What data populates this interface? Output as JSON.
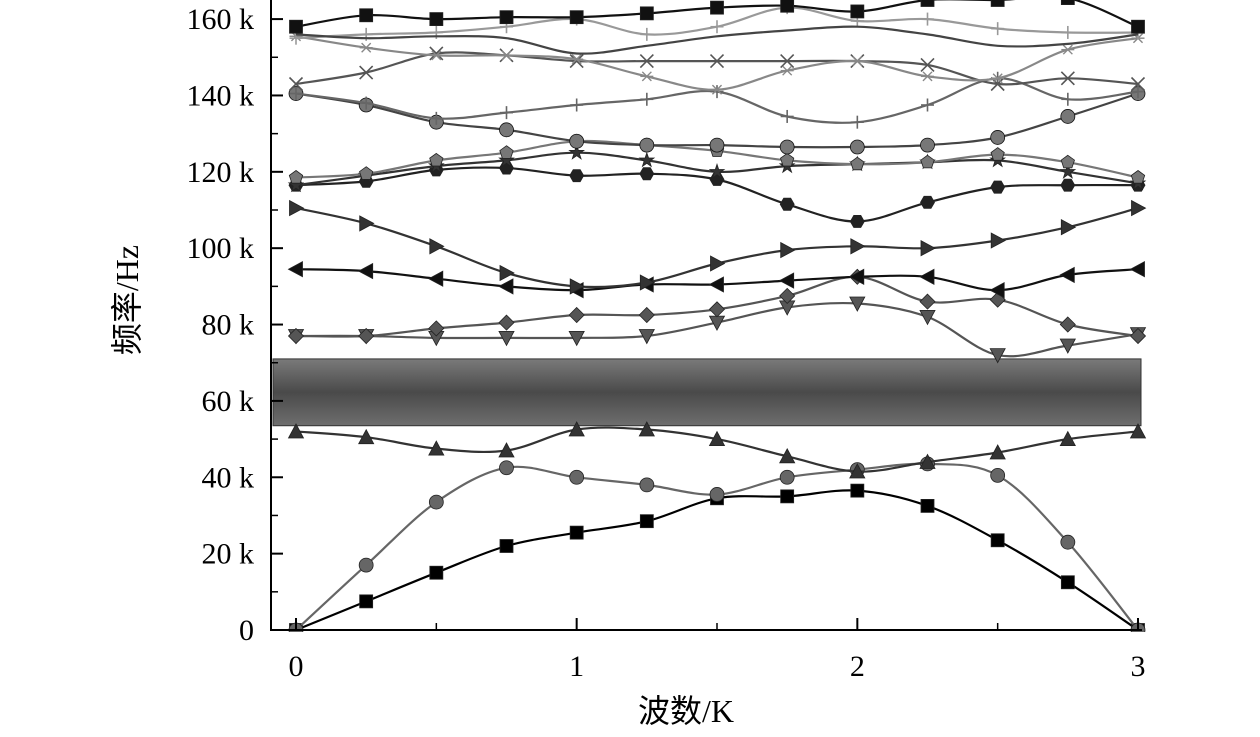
{
  "chart_data": {
    "type": "line",
    "title": "",
    "xlabel": "波数/K",
    "ylabel": "频率/Hz",
    "xlim": [
      0,
      3
    ],
    "ylim": [
      0,
      165000
    ],
    "x_ticks": [
      0,
      1,
      2,
      3
    ],
    "x_tick_labels": [
      "0",
      "1",
      "2",
      "3"
    ],
    "y_ticks": [
      0,
      20000,
      40000,
      60000,
      80000,
      100000,
      120000,
      140000,
      160000
    ],
    "y_tick_labels": [
      "0",
      "20 k",
      "40 k",
      "60 k",
      "80 k",
      "100 k",
      "120 k",
      "140 k",
      "160 k"
    ],
    "grid": false,
    "legend": "none",
    "band_gap": {
      "ymin": 53500,
      "ymax": 71000,
      "color": "#555555"
    },
    "x": [
      0,
      0.25,
      0.5,
      0.75,
      1,
      1.25,
      1.5,
      1.75,
      2,
      2.25,
      2.5,
      2.75,
      3
    ],
    "series": [
      {
        "marker": "square",
        "color": "#000000",
        "values": [
          0,
          7500,
          15000,
          22000,
          25500,
          28500,
          34500,
          35000,
          36500,
          32500,
          23500,
          12500,
          0
        ]
      },
      {
        "marker": "circle",
        "color": "#666666",
        "values": [
          0,
          17000,
          33500,
          42500,
          40000,
          38000,
          35500,
          40000,
          42000,
          43500,
          40500,
          23000,
          0
        ]
      },
      {
        "marker": "triangle-up",
        "color": "#333333",
        "values": [
          52000,
          50500,
          47500,
          47000,
          52500,
          52500,
          50000,
          45500,
          41500,
          44000,
          46500,
          50000,
          52000
        ]
      },
      {
        "marker": "triangle-down",
        "color": "#555555",
        "values": [
          77000,
          77000,
          76500,
          76500,
          76500,
          77000,
          80500,
          84500,
          85500,
          82000,
          72000,
          74500,
          77500
        ]
      },
      {
        "marker": "diamond",
        "color": "#555555",
        "values": [
          77000,
          77000,
          79000,
          80500,
          82500,
          82500,
          84000,
          87500,
          92500,
          86000,
          86500,
          80000,
          77000
        ]
      },
      {
        "marker": "triangle-left",
        "color": "#111111",
        "values": [
          94500,
          94000,
          92000,
          90000,
          89000,
          90500,
          90500,
          91500,
          92500,
          92500,
          89000,
          93000,
          94500
        ]
      },
      {
        "marker": "triangle-right",
        "color": "#333333",
        "values": [
          110500,
          106500,
          100500,
          93500,
          90000,
          91000,
          96000,
          99500,
          100500,
          100000,
          102000,
          105500,
          110500
        ]
      },
      {
        "marker": "hexagon",
        "color": "#222222",
        "values": [
          116500,
          117500,
          120500,
          121000,
          119000,
          119500,
          118000,
          111500,
          107000,
          112000,
          116000,
          116500,
          116500
        ]
      },
      {
        "marker": "star",
        "color": "#333333",
        "values": [
          116500,
          119000,
          121500,
          123000,
          125000,
          123000,
          120000,
          121500,
          122000,
          122500,
          123000,
          120000,
          117000
        ]
      },
      {
        "marker": "pentagon",
        "color": "#777777",
        "values": [
          118500,
          119500,
          123000,
          125000,
          128000,
          127000,
          125500,
          123000,
          122000,
          122500,
          124500,
          122500,
          118500
        ]
      },
      {
        "marker": "sphere",
        "color": "#444444",
        "values": [
          140500,
          137500,
          133000,
          131000,
          128000,
          127000,
          127000,
          126500,
          126500,
          127000,
          129000,
          134500,
          140500
        ]
      },
      {
        "marker": "plus",
        "color": "#666666",
        "values": [
          140500,
          138000,
          134000,
          135500,
          137500,
          139000,
          141000,
          134500,
          133000,
          137500,
          144500,
          139000,
          141000
        ]
      },
      {
        "marker": "x",
        "color": "#555555",
        "values": [
          143000,
          146000,
          151000,
          150500,
          149000,
          149000,
          149000,
          149000,
          149000,
          148000,
          143000,
          144500,
          143000
        ]
      },
      {
        "marker": "asterisk",
        "color": "#888888",
        "values": [
          155500,
          152500,
          150500,
          150500,
          149500,
          145000,
          141500,
          146500,
          149000,
          145000,
          144500,
          152000,
          155000
        ]
      },
      {
        "marker": "plus",
        "color": "#999999",
        "values": [
          155000,
          156000,
          156500,
          158000,
          160000,
          156000,
          158000,
          163000,
          159500,
          160000,
          157500,
          156500,
          156500
        ]
      },
      {
        "marker": "none",
        "color": "#444444",
        "values": [
          156000,
          155000,
          155500,
          155000,
          151000,
          153000,
          155500,
          157000,
          158000,
          156000,
          153000,
          153500,
          156000
        ]
      },
      {
        "marker": "square",
        "color": "#111111",
        "values": [
          158000,
          161000,
          160000,
          160500,
          160500,
          161500,
          163000,
          163500,
          162000,
          165000,
          165000,
          165500,
          158000
        ]
      }
    ]
  }
}
